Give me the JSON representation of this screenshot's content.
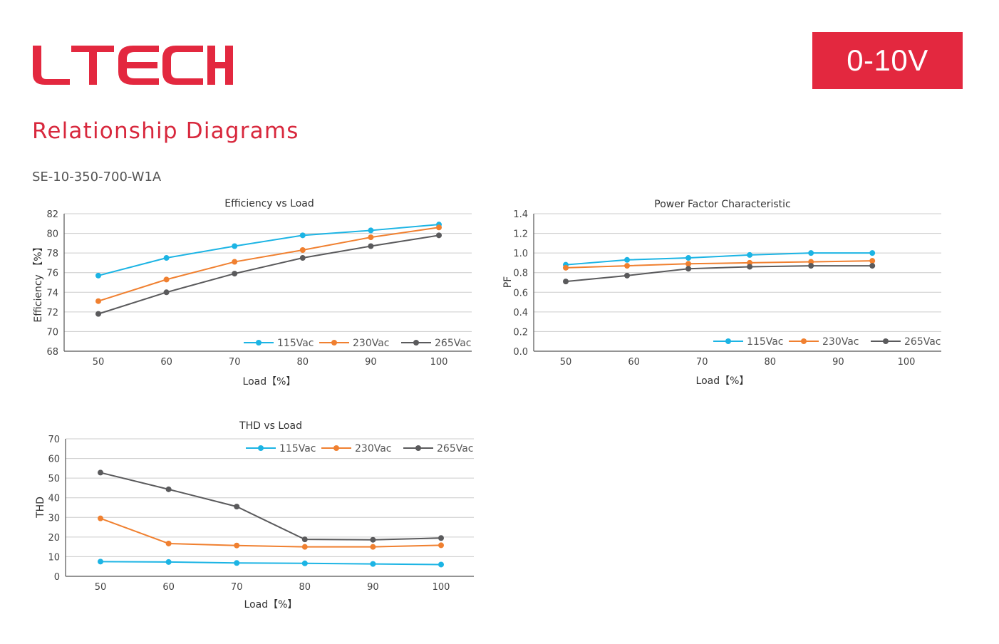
{
  "header": {
    "brand": "LTECH",
    "badge": "0-10V",
    "section_title": "Relationship Diagrams",
    "model": "SE-10-350-700-W1A"
  },
  "colors": {
    "brand_red": "#e3283f",
    "series_115": "#1cb4e4",
    "series_230": "#f08030",
    "series_265": "#5a5a5c",
    "grid": "#cccccc",
    "axis": "#555555"
  },
  "chart_data": [
    {
      "type": "line",
      "title": "Efficiency vs Load",
      "xlabel": "Load【%】",
      "ylabel": "Efficiency 【%】",
      "x_ticks": [
        "50",
        "60",
        "70",
        "80",
        "90",
        "100"
      ],
      "y_ticks": [
        "68",
        "70",
        "72",
        "74",
        "76",
        "78",
        "80",
        "82"
      ],
      "xlim": [
        45,
        105
      ],
      "ylim": [
        68,
        82
      ],
      "grid": true,
      "legend_position": "bottom-right",
      "series": [
        {
          "name": "115Vac",
          "x": [
            50,
            60,
            70,
            80,
            90,
            100
          ],
          "values": [
            75.7,
            77.5,
            78.7,
            79.8,
            80.3,
            80.9
          ]
        },
        {
          "name": "230Vac",
          "x": [
            50,
            60,
            70,
            80,
            90,
            100
          ],
          "values": [
            73.1,
            75.3,
            77.1,
            78.3,
            79.6,
            80.6
          ]
        },
        {
          "name": "265Vac",
          "x": [
            50,
            60,
            70,
            80,
            90,
            100
          ],
          "values": [
            71.8,
            74.0,
            75.9,
            77.5,
            78.7,
            79.8
          ]
        }
      ]
    },
    {
      "type": "line",
      "title": "Power Factor Characteristic",
      "xlabel": "Load【%】",
      "ylabel": "PF",
      "x_ticks": [
        "50",
        "60",
        "70",
        "80",
        "90",
        "100"
      ],
      "y_ticks": [
        "0.0",
        "0.2",
        "0.4",
        "0.6",
        "0.8",
        "1.0",
        "1.2",
        "1.4"
      ],
      "xlim": [
        45,
        105
      ],
      "ylim": [
        0,
        1.4
      ],
      "grid": true,
      "legend_position": "bottom-right",
      "series": [
        {
          "name": "115Vac",
          "x": [
            50,
            59,
            68,
            77,
            86,
            95
          ],
          "values": [
            0.88,
            0.93,
            0.95,
            0.98,
            1.0,
            1.0
          ]
        },
        {
          "name": "230Vac",
          "x": [
            50,
            59,
            68,
            77,
            86,
            95
          ],
          "values": [
            0.85,
            0.87,
            0.89,
            0.9,
            0.91,
            0.92
          ]
        },
        {
          "name": "265Vac",
          "x": [
            50,
            59,
            68,
            77,
            86,
            95
          ],
          "values": [
            0.71,
            0.77,
            0.84,
            0.86,
            0.87,
            0.87
          ]
        }
      ]
    },
    {
      "type": "line",
      "title": "THD vs Load",
      "xlabel": "Load【%】",
      "ylabel": "THD",
      "x_ticks": [
        "50",
        "60",
        "70",
        "80",
        "90",
        "100"
      ],
      "y_ticks": [
        "0",
        "10",
        "20",
        "30",
        "40",
        "50",
        "60",
        "70"
      ],
      "xlim": [
        45,
        105
      ],
      "ylim": [
        0,
        70
      ],
      "grid": true,
      "legend_position": "top-right",
      "series": [
        {
          "name": "115Vac",
          "x": [
            50,
            60,
            70,
            80,
            90,
            100
          ],
          "values": [
            7.5,
            7.3,
            6.8,
            6.6,
            6.3,
            6.0
          ]
        },
        {
          "name": "230Vac",
          "x": [
            50,
            60,
            70,
            80,
            90,
            100
          ],
          "values": [
            29.5,
            16.7,
            15.7,
            15.0,
            15.0,
            15.8
          ]
        },
        {
          "name": "265Vac",
          "x": [
            50,
            60,
            70,
            80,
            90,
            100
          ],
          "values": [
            52.8,
            44.3,
            35.5,
            18.8,
            18.6,
            19.5
          ]
        }
      ]
    }
  ]
}
